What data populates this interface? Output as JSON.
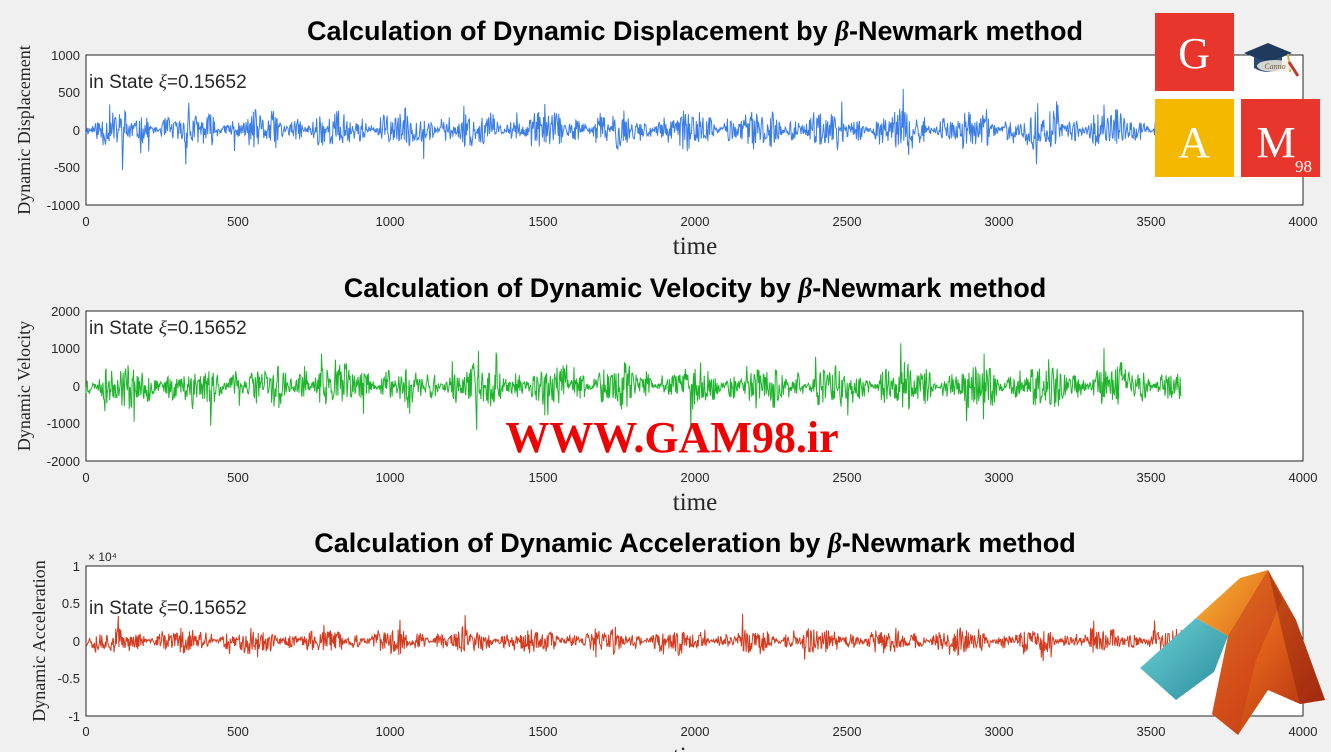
{
  "chart_data": [
    {
      "type": "line",
      "title_prefix": "Calculation of Dynamic Displacement by ",
      "title_symbol": "β",
      "title_suffix": "-Newmark method",
      "xlabel": "time",
      "ylabel": "Dynamic Displacement",
      "annotation_prefix": "in State ",
      "annotation_symbol": "ξ",
      "annotation_value": "=0.15652",
      "color": "#3b7de6",
      "xlim": [
        0,
        4000
      ],
      "ylim": [
        -1000,
        1000
      ],
      "xticks": [
        "0",
        "500",
        "1000",
        "1500",
        "2000",
        "2500",
        "3000",
        "3500",
        "4000"
      ],
      "yticks": [
        "1000",
        "500",
        "0",
        "-500",
        "-1000"
      ],
      "exponent_label": "",
      "series": [
        {
          "x_range": [
            0,
            3600
          ],
          "amplitude_peak": 700,
          "typical_amplitude": 300
        }
      ]
    },
    {
      "type": "line",
      "title_prefix": "Calculation of Dynamic Velocity by ",
      "title_symbol": "β",
      "title_suffix": "-Newmark method",
      "xlabel": "time",
      "ylabel": "Dynamic Velocity",
      "annotation_prefix": "in State ",
      "annotation_symbol": "ξ",
      "annotation_value": "=0.15652",
      "color": "#1db42b",
      "xlim": [
        0,
        4000
      ],
      "ylim": [
        -2000,
        2000
      ],
      "xticks": [
        "0",
        "500",
        "1000",
        "1500",
        "2000",
        "2500",
        "3000",
        "3500",
        "4000"
      ],
      "yticks": [
        "2000",
        "1000",
        "0",
        "-1000",
        "-2000"
      ],
      "exponent_label": "",
      "series": [
        {
          "x_range": [
            0,
            3600
          ],
          "amplitude_peak": 1700,
          "typical_amplitude": 700
        }
      ]
    },
    {
      "type": "line",
      "title_prefix": "Calculation of Dynamic Acceleration by ",
      "title_symbol": "β",
      "title_suffix": "-Newmark method",
      "xlabel": "time",
      "ylabel": "Dynamic Acceleration",
      "annotation_prefix": "in State ",
      "annotation_symbol": "ξ",
      "annotation_value": "=0.15652",
      "color": "#d43a1e",
      "xlim": [
        0,
        4000
      ],
      "ylim": [
        -1,
        1
      ],
      "xticks": [
        "0",
        "500",
        "1000",
        "1500",
        "2000",
        "2500",
        "3000",
        "3500",
        "4000"
      ],
      "yticks": [
        "1",
        "0.5",
        "0",
        "-0.5",
        "-1"
      ],
      "exponent_label": "× 10⁴",
      "series": [
        {
          "x_range": [
            0,
            3600
          ],
          "amplitude_peak": 0.55,
          "typical_amplitude": 0.2
        }
      ]
    }
  ],
  "watermark": "WWW.GAM98.ir",
  "logo": {
    "letters": [
      "G",
      "A",
      "M"
    ],
    "subscript": "98",
    "cap_text": "Canno",
    "colors": {
      "red": "#e8362c",
      "yellow": "#f5b800"
    }
  },
  "matlab_logo_icon": "matlab-membrane-icon"
}
